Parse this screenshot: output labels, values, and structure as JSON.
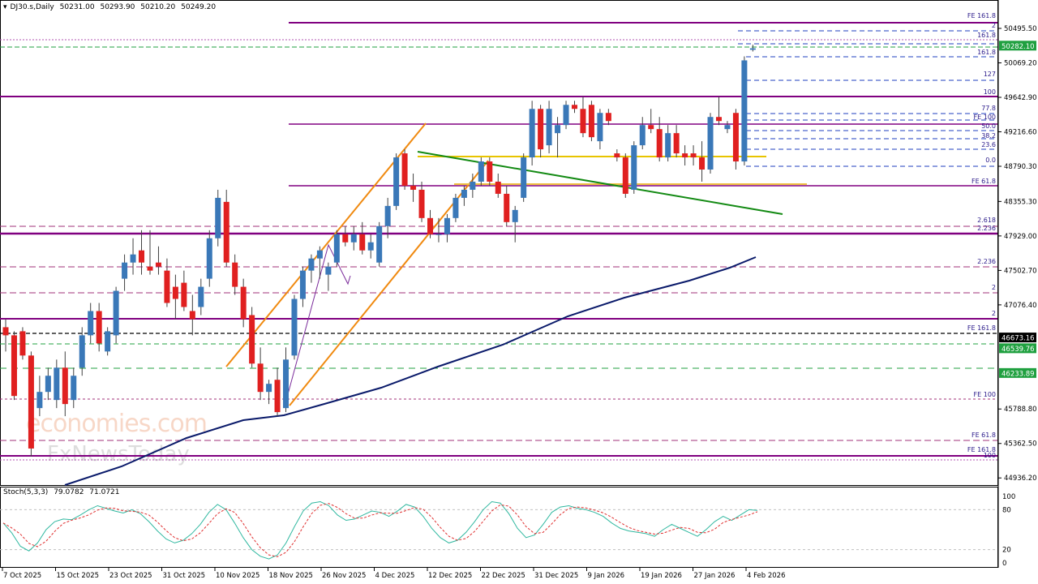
{
  "header": {
    "symbol": "DJ30.s,Daily",
    "open": "50231.00",
    "high": "50293.90",
    "low": "50210.20",
    "close": "50249.20"
  },
  "watermark": {
    "line1": "economies.com",
    "line2": "FxNewsToday"
  },
  "chart_data": [
    {
      "type": "candlestick",
      "symbol": "DJ30.s",
      "timeframe": "Daily",
      "price_ticks": [
        "50495.50",
        "50069.20",
        "49642.90",
        "49216.60",
        "48790.30",
        "48355.30",
        "47929.00",
        "47502.70",
        "47076.40",
        "45788.80",
        "45362.50",
        "44936.20"
      ],
      "date_ticks": [
        "7 Oct 2025",
        "15 Oct 2025",
        "23 Oct 2025",
        "31 Oct 2025",
        "10 Nov 2025",
        "18 Nov 2025",
        "26 Nov 2025",
        "4 Dec 2025",
        "12 Dec 2025",
        "22 Dec 2025",
        "31 Dec 2025",
        "9 Jan 2026",
        "19 Jan 2026",
        "27 Jan 2026",
        "4 Feb 2026"
      ],
      "price_badges": [
        {
          "value": "50282.10",
          "color": "#20a040"
        },
        {
          "value": "46673.16",
          "color": "#000000"
        },
        {
          "value": "46539.76",
          "color": "#20a040"
        },
        {
          "value": "46233.89",
          "color": "#20a040"
        }
      ],
      "fib_labels": [
        "FE 161.8",
        "2",
        "161.8",
        "161.8",
        "127",
        "100",
        "77.8",
        "FE 100",
        "50.0",
        "38.2",
        "23.6",
        "0.0",
        "FE 61.8",
        "2.618",
        "2.236",
        "2.236",
        "2",
        "2",
        "FE 161.8",
        "FE 100",
        "FE 61.8",
        "FE 161.8",
        "100"
      ],
      "candles": [
        {
          "d": 1,
          "o": 46800,
          "h": 46900,
          "l": 46500,
          "c": 46700
        },
        {
          "d": 2,
          "o": 46700,
          "h": 46750,
          "l": 45900,
          "c": 45950
        },
        {
          "d": 3,
          "o": 46750,
          "h": 46800,
          "l": 46400,
          "c": 46450
        },
        {
          "d": 4,
          "o": 46450,
          "h": 46500,
          "l": 45200,
          "c": 45300
        },
        {
          "d": 5,
          "o": 45800,
          "h": 46200,
          "l": 45700,
          "c": 46000
        },
        {
          "d": 6,
          "o": 46000,
          "h": 46300,
          "l": 45900,
          "c": 46200
        },
        {
          "d": 7,
          "o": 45900,
          "h": 46400,
          "l": 45800,
          "c": 46300
        },
        {
          "d": 8,
          "o": 46300,
          "h": 46500,
          "l": 45700,
          "c": 45850
        },
        {
          "d": 9,
          "o": 45900,
          "h": 46300,
          "l": 45800,
          "c": 46200
        },
        {
          "d": 10,
          "o": 46300,
          "h": 46800,
          "l": 46200,
          "c": 46700
        },
        {
          "d": 11,
          "o": 46700,
          "h": 47100,
          "l": 46600,
          "c": 47000
        },
        {
          "d": 12,
          "o": 47000,
          "h": 47100,
          "l": 46500,
          "c": 46600
        },
        {
          "d": 13,
          "o": 46500,
          "h": 46800,
          "l": 46450,
          "c": 46750
        },
        {
          "d": 14,
          "o": 46700,
          "h": 47300,
          "l": 46600,
          "c": 47250
        },
        {
          "d": 15,
          "o": 47400,
          "h": 47700,
          "l": 47250,
          "c": 47600
        },
        {
          "d": 16,
          "o": 47600,
          "h": 47900,
          "l": 47450,
          "c": 47700
        },
        {
          "d": 17,
          "o": 47750,
          "h": 48000,
          "l": 47450,
          "c": 47600
        },
        {
          "d": 18,
          "o": 47550,
          "h": 48000,
          "l": 47450,
          "c": 47500
        },
        {
          "d": 19,
          "o": 47600,
          "h": 47800,
          "l": 47450,
          "c": 47550
        },
        {
          "d": 20,
          "o": 47500,
          "h": 47650,
          "l": 47050,
          "c": 47100
        },
        {
          "d": 21,
          "o": 47300,
          "h": 47450,
          "l": 46900,
          "c": 47150
        },
        {
          "d": 22,
          "o": 47350,
          "h": 47500,
          "l": 47000,
          "c": 47050
        },
        {
          "d": 23,
          "o": 47000,
          "h": 47200,
          "l": 46700,
          "c": 46900
        },
        {
          "d": 24,
          "o": 47050,
          "h": 47400,
          "l": 46950,
          "c": 47300
        },
        {
          "d": 25,
          "o": 47400,
          "h": 48000,
          "l": 47300,
          "c": 47900
        },
        {
          "d": 26,
          "o": 47900,
          "h": 48500,
          "l": 47800,
          "c": 48400
        },
        {
          "d": 27,
          "o": 48350,
          "h": 48500,
          "l": 47550,
          "c": 47600
        },
        {
          "d": 28,
          "o": 47600,
          "h": 47700,
          "l": 47200,
          "c": 47300
        },
        {
          "d": 29,
          "o": 47300,
          "h": 47400,
          "l": 46800,
          "c": 46900
        },
        {
          "d": 30,
          "o": 46950,
          "h": 47050,
          "l": 46300,
          "c": 46350
        },
        {
          "d": 31,
          "o": 46350,
          "h": 46550,
          "l": 45900,
          "c": 46000
        },
        {
          "d": 32,
          "o": 46000,
          "h": 46150,
          "l": 45850,
          "c": 46100
        },
        {
          "d": 33,
          "o": 46150,
          "h": 46300,
          "l": 45700,
          "c": 45750
        },
        {
          "d": 34,
          "o": 45800,
          "h": 46550,
          "l": 45750,
          "c": 46400
        },
        {
          "d": 35,
          "o": 46450,
          "h": 47200,
          "l": 46400,
          "c": 47150
        },
        {
          "d": 36,
          "o": 47150,
          "h": 47550,
          "l": 47050,
          "c": 47500
        },
        {
          "d": 37,
          "o": 47500,
          "h": 47700,
          "l": 47350,
          "c": 47650
        },
        {
          "d": 38,
          "o": 47650,
          "h": 47800,
          "l": 47400,
          "c": 47750
        },
        {
          "d": 39,
          "o": 47450,
          "h": 47600,
          "l": 47250,
          "c": 47550
        },
        {
          "d": 40,
          "o": 47600,
          "h": 48000,
          "l": 47550,
          "c": 47950
        },
        {
          "d": 41,
          "o": 47950,
          "h": 48050,
          "l": 47800,
          "c": 47850
        },
        {
          "d": 42,
          "o": 47850,
          "h": 48050,
          "l": 47750,
          "c": 47950
        },
        {
          "d": 43,
          "o": 47950,
          "h": 48100,
          "l": 47700,
          "c": 47750
        },
        {
          "d": 44,
          "o": 47750,
          "h": 47950,
          "l": 47650,
          "c": 47850
        },
        {
          "d": 45,
          "o": 47600,
          "h": 48100,
          "l": 47550,
          "c": 48050
        },
        {
          "d": 46,
          "o": 48050,
          "h": 48400,
          "l": 47900,
          "c": 48300
        },
        {
          "d": 47,
          "o": 48300,
          "h": 48950,
          "l": 48250,
          "c": 48900
        },
        {
          "d": 48,
          "o": 48950,
          "h": 49000,
          "l": 48500,
          "c": 48550
        },
        {
          "d": 49,
          "o": 48550,
          "h": 48700,
          "l": 48350,
          "c": 48500
        },
        {
          "d": 50,
          "o": 48500,
          "h": 48600,
          "l": 48100,
          "c": 48150
        },
        {
          "d": 51,
          "o": 48150,
          "h": 48250,
          "l": 47900,
          "c": 47950
        },
        {
          "d": 52,
          "o": 47950,
          "h": 48150,
          "l": 47850,
          "c": 47950
        },
        {
          "d": 53,
          "o": 47950,
          "h": 48200,
          "l": 47850,
          "c": 48150
        },
        {
          "d": 54,
          "o": 48150,
          "h": 48450,
          "l": 48100,
          "c": 48400
        },
        {
          "d": 55,
          "o": 48400,
          "h": 48550,
          "l": 48300,
          "c": 48500
        },
        {
          "d": 56,
          "o": 48500,
          "h": 48700,
          "l": 48400,
          "c": 48600
        },
        {
          "d": 57,
          "o": 48600,
          "h": 48900,
          "l": 48550,
          "c": 48850
        },
        {
          "d": 58,
          "o": 48850,
          "h": 48900,
          "l": 48550,
          "c": 48600
        },
        {
          "d": 59,
          "o": 48600,
          "h": 48700,
          "l": 48400,
          "c": 48450
        },
        {
          "d": 60,
          "o": 48450,
          "h": 48550,
          "l": 48050,
          "c": 48100
        },
        {
          "d": 61,
          "o": 48100,
          "h": 48300,
          "l": 47850,
          "c": 48250
        },
        {
          "d": 62,
          "o": 48400,
          "h": 48950,
          "l": 48350,
          "c": 48900
        },
        {
          "d": 63,
          "o": 48900,
          "h": 49600,
          "l": 48800,
          "c": 49500
        },
        {
          "d": 64,
          "o": 49500,
          "h": 49550,
          "l": 48900,
          "c": 49000
        },
        {
          "d": 65,
          "o": 49050,
          "h": 49600,
          "l": 48950,
          "c": 49500
        },
        {
          "d": 66,
          "o": 49200,
          "h": 49400,
          "l": 48900,
          "c": 49300
        },
        {
          "d": 67,
          "o": 49300,
          "h": 49600,
          "l": 49250,
          "c": 49550
        },
        {
          "d": 68,
          "o": 49550,
          "h": 49600,
          "l": 49450,
          "c": 49500
        },
        {
          "d": 69,
          "o": 49500,
          "h": 49650,
          "l": 49150,
          "c": 49200
        },
        {
          "d": 70,
          "o": 49550,
          "h": 49600,
          "l": 49100,
          "c": 49150
        },
        {
          "d": 71,
          "o": 49100,
          "h": 49500,
          "l": 49000,
          "c": 49450
        },
        {
          "d": 72,
          "o": 49450,
          "h": 49500,
          "l": 49300,
          "c": 49350
        },
        {
          "d": 73,
          "o": 48950,
          "h": 49000,
          "l": 48850,
          "c": 48900
        },
        {
          "d": 74,
          "o": 48900,
          "h": 48950,
          "l": 48400,
          "c": 48450
        },
        {
          "d": 75,
          "o": 48500,
          "h": 49100,
          "l": 48450,
          "c": 49050
        },
        {
          "d": 76,
          "o": 49050,
          "h": 49400,
          "l": 49000,
          "c": 49300
        },
        {
          "d": 77,
          "o": 49300,
          "h": 49500,
          "l": 49200,
          "c": 49250
        },
        {
          "d": 78,
          "o": 49250,
          "h": 49400,
          "l": 48850,
          "c": 48900
        },
        {
          "d": 79,
          "o": 48900,
          "h": 49300,
          "l": 48850,
          "c": 49200
        },
        {
          "d": 80,
          "o": 49200,
          "h": 49300,
          "l": 48900,
          "c": 48950
        },
        {
          "d": 81,
          "o": 48950,
          "h": 49050,
          "l": 48800,
          "c": 48900
        },
        {
          "d": 82,
          "o": 48950,
          "h": 49050,
          "l": 48800,
          "c": 48900
        },
        {
          "d": 83,
          "o": 48900,
          "h": 49100,
          "l": 48600,
          "c": 48750
        },
        {
          "d": 84,
          "o": 48750,
          "h": 49450,
          "l": 48700,
          "c": 49400
        },
        {
          "d": 85,
          "o": 49400,
          "h": 49650,
          "l": 49300,
          "c": 49350
        },
        {
          "d": 86,
          "o": 49250,
          "h": 49350,
          "l": 49200,
          "c": 49300
        },
        {
          "d": 87,
          "o": 49450,
          "h": 49500,
          "l": 48750,
          "c": 48850
        },
        {
          "d": 88,
          "o": 48850,
          "h": 50150,
          "l": 48800,
          "c": 50100
        },
        {
          "d": 89,
          "o": 50231,
          "h": 50294,
          "l": 50210,
          "c": 50249
        }
      ]
    },
    {
      "type": "line",
      "name": "Stoch(5,3,3)",
      "values_text": [
        "79.0782",
        "71.0721"
      ],
      "y_ticks": [
        "100",
        "80",
        "20",
        "0"
      ],
      "ylim": [
        0,
        100
      ],
      "k": [
        60,
        45,
        25,
        18,
        30,
        50,
        62,
        66,
        65,
        72,
        80,
        86,
        82,
        78,
        75,
        80,
        74,
        62,
        48,
        36,
        30,
        34,
        44,
        58,
        76,
        88,
        80,
        60,
        38,
        20,
        10,
        6,
        12,
        30,
        55,
        78,
        90,
        92,
        86,
        72,
        64,
        66,
        72,
        78,
        76,
        70,
        78,
        88,
        84,
        70,
        52,
        38,
        30,
        34,
        46,
        62,
        80,
        92,
        90,
        74,
        52,
        38,
        42,
        58,
        76,
        84,
        86,
        82,
        80,
        76,
        70,
        60,
        52,
        48,
        46,
        44,
        40,
        50,
        58,
        52,
        46,
        40,
        50,
        62,
        70,
        64,
        72,
        80,
        79
      ]
    }
  ]
}
